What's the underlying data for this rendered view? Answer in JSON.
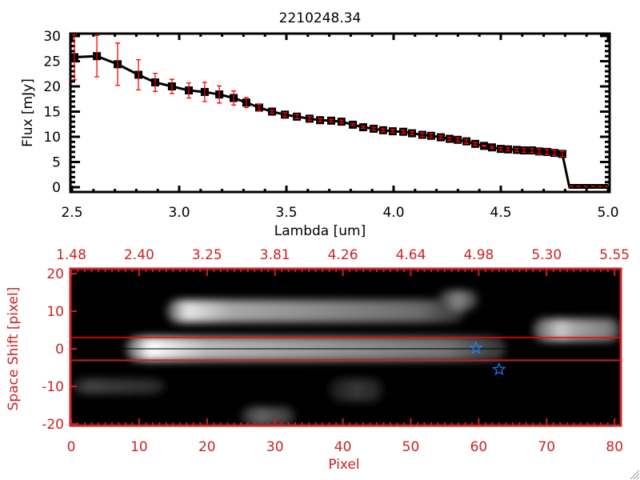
{
  "colors": {
    "axis_bottom": "#cc2222",
    "marker": "#000000",
    "errorbar": "#ff0000",
    "star": "#1e7fff",
    "aperture": "#ff0000"
  },
  "chart_data": [
    {
      "type": "line",
      "title": "2210248.34",
      "xlabel": "Lambda [um]",
      "ylabel": "Flux [mJy]",
      "xlim": [
        2.5,
        5.0
      ],
      "ylim": [
        0,
        30
      ],
      "xticks": [
        "2.5",
        "3.0",
        "3.5",
        "4.0",
        "4.5",
        "5.0"
      ],
      "xtick_values": [
        2.5,
        3.0,
        3.5,
        4.0,
        4.5,
        5.0
      ],
      "yticks": [
        "0",
        "5",
        "10",
        "15",
        "20",
        "25",
        "30"
      ],
      "ytick_values": [
        0,
        5,
        10,
        15,
        20,
        25,
        30
      ],
      "series": [
        {
          "name": "spectrum",
          "x": [
            2.511,
            2.616,
            2.713,
            2.81,
            2.888,
            2.966,
            3.045,
            3.119,
            3.187,
            3.254,
            3.313,
            3.373,
            3.433,
            3.493,
            3.549,
            3.608,
            3.657,
            3.709,
            3.757,
            3.81,
            3.858,
            3.907,
            3.951,
            3.996,
            4.045,
            4.086,
            4.134,
            4.175,
            4.22,
            4.261,
            4.299,
            4.34,
            4.381,
            4.422,
            4.459,
            4.5,
            4.534,
            4.575,
            4.608,
            4.646,
            4.679,
            4.716,
            4.75,
            4.787
          ],
          "y": [
            25.8,
            26.0,
            24.4,
            22.3,
            20.8,
            20.0,
            19.2,
            18.9,
            18.4,
            17.7,
            16.8,
            15.8,
            15.0,
            14.4,
            14.0,
            13.6,
            13.3,
            13.2,
            13.0,
            12.4,
            11.9,
            11.6,
            11.3,
            11.1,
            11.0,
            10.7,
            10.4,
            10.2,
            9.9,
            9.6,
            9.4,
            9.1,
            8.6,
            8.2,
            7.9,
            7.6,
            7.5,
            7.4,
            7.3,
            7.3,
            7.1,
            7.0,
            6.8,
            6.6
          ],
          "yerr": [
            4.5,
            4.1,
            4.2,
            3.0,
            1.8,
            1.4,
            1.5,
            1.9,
            1.7,
            1.4,
            1.0,
            0.6,
            0.3,
            0.4,
            0.4,
            0.4,
            0.3,
            0.3,
            0.3,
            0.2,
            0.2,
            0.3,
            0.3,
            0.3,
            0.3,
            0.3,
            0.4,
            0.4,
            0.3,
            0.3,
            0.4,
            0.4,
            0.3,
            0.1,
            0.2,
            0.3,
            0.3,
            0.3,
            0.4,
            0.4,
            0.5,
            0.5,
            0.5,
            0.5
          ]
        }
      ],
      "zero_segment": {
        "x": [
          4.82,
          5.0
        ],
        "y": 0
      }
    },
    {
      "type": "heatmap",
      "xlabel": "Pixel",
      "ylabel": "Space Shift [pixel]",
      "xlim": [
        0,
        81
      ],
      "ylim": [
        -21,
        21
      ],
      "xticks": [
        "0",
        "10",
        "20",
        "30",
        "40",
        "50",
        "60",
        "70",
        "80"
      ],
      "xtick_values": [
        0,
        10,
        20,
        30,
        40,
        50,
        60,
        70,
        80
      ],
      "top_ticks": [
        "1.48",
        "2.40",
        "3.25",
        "3.81",
        "4.26",
        "4.64",
        "4.98",
        "5.30",
        "5.55"
      ],
      "yticks": [
        "20",
        "10",
        "0",
        "-10",
        "-20"
      ],
      "ytick_values": [
        20,
        10,
        0,
        -10,
        -20
      ],
      "aperture": [
        -3,
        3
      ],
      "center": 0,
      "stars": [
        {
          "x": 59.6,
          "y": 0.2
        },
        {
          "x": 63,
          "y": -5.5
        }
      ],
      "sources": [
        {
          "x0": 8,
          "x1": 64,
          "y": 0,
          "peak_x": 11.5,
          "peak": 1.0,
          "tail": 0.45,
          "width": 3.2
        },
        {
          "x0": 14,
          "x1": 58,
          "y": 10,
          "peak_x": 17,
          "peak": 0.9,
          "tail": 0.42,
          "width": 3.0
        },
        {
          "x0": 54,
          "x1": 60,
          "y": 13,
          "peak_x": 57,
          "peak": 0.55,
          "tail": 0.3,
          "width": 2.5
        },
        {
          "x0": 68,
          "x1": 81,
          "y": 5,
          "peak_x": 72,
          "peak": 0.8,
          "tail": 0.5,
          "width": 3.0
        },
        {
          "x0": 25,
          "x1": 33,
          "y": -18,
          "peak_x": 28,
          "peak": 0.4,
          "tail": 0.25,
          "width": 2.5
        },
        {
          "x0": 0,
          "x1": 14,
          "y": -10,
          "peak_x": 3,
          "peak": 0.28,
          "tail": 0.18,
          "width": 2.0
        },
        {
          "x0": 38,
          "x1": 46,
          "y": -11,
          "peak_x": 42,
          "peak": 0.22,
          "tail": 0.15,
          "width": 3.0
        }
      ]
    }
  ]
}
